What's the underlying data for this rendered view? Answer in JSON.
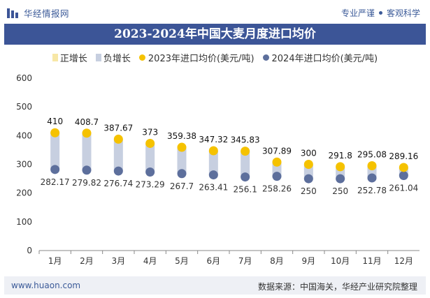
{
  "header": {
    "brand": "华经情报网",
    "tagline_left": "专业严谨",
    "tagline_right": "客观科学"
  },
  "title": "2023-2024年中国大麦月度进口均价",
  "legend": {
    "pos_growth": "正增长",
    "neg_growth": "负增长",
    "series_2023": "2023年进口均价(美元/吨)",
    "series_2024": "2024年进口均价(美元/吨)"
  },
  "footer": {
    "website": "www.huaon.com",
    "source": "数据来源：中国海关，华经产业研究院整理"
  },
  "colors": {
    "header_blue": "#3c5597",
    "negative_bar": "#c7cfe0",
    "series_2023": "#f5c200",
    "series_2024": "#5d6f9c"
  },
  "chart_data": {
    "type": "scatter",
    "categories": [
      "1月",
      "2月",
      "3月",
      "4月",
      "5月",
      "6月",
      "7月",
      "8月",
      "9月",
      "10月",
      "11月",
      "12月"
    ],
    "series": [
      {
        "name": "2023年进口均价(美元/吨)",
        "values": [
          410,
          408.7,
          387.67,
          373,
          359.38,
          347.32,
          345.83,
          307.89,
          300,
          291.8,
          295.08,
          289.16
        ]
      },
      {
        "name": "2024年进口均价(美元/吨)",
        "values": [
          282.17,
          279.82,
          276.74,
          273.29,
          267.7,
          263.41,
          256.1,
          258.26,
          250,
          250,
          252.78,
          261.04
        ]
      }
    ],
    "growth_bars": "negative growth bar spans from 2024 value to 2023 value for each month",
    "ylim": [
      0,
      600
    ],
    "yticks": [
      0,
      100,
      200,
      300,
      400,
      500,
      600
    ],
    "grid": false,
    "legend_position": "top"
  }
}
